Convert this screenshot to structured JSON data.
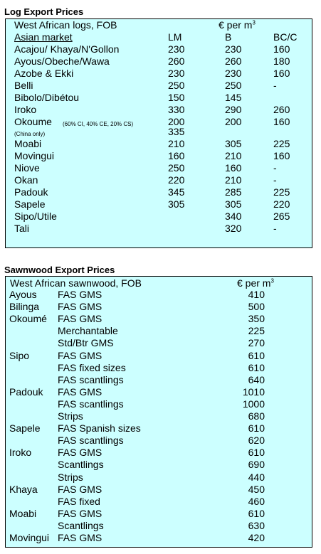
{
  "log": {
    "heading": "Log Export Prices",
    "subtitle": "West African logs, FOB",
    "unit": "€ per m",
    "unit_sup": "3",
    "market": "Asian market",
    "cols": [
      "LM",
      "B",
      "BC/C"
    ],
    "rows": [
      {
        "name": "Acajou/ Khaya/N'Gollon",
        "lm": "230",
        "b": "230",
        "bc": "160"
      },
      {
        "name": "Ayous/Obeche/Wawa",
        "lm": "260",
        "b": "260",
        "bc": "180"
      },
      {
        "name": "Azobe & Ekki",
        "lm": "230",
        "b": "230",
        "bc": "160"
      },
      {
        "name": "Belli",
        "lm": "250",
        "b": "250",
        "bc": "-"
      },
      {
        "name": "Bibolo/Dibétou",
        "lm": "150",
        "b": "145",
        "bc": ""
      },
      {
        "name": "Iroko",
        "lm": "330",
        "b": "290",
        "bc": "260"
      },
      {
        "name": "Okoume",
        "note": "(60% CI, 40% CE, 20% CS)",
        "lm": "200",
        "b": "200",
        "bc": "160"
      },
      {
        "name": "",
        "note": "(China only)",
        "lm": "335",
        "b": "",
        "bc": ""
      },
      {
        "name": "Moabi",
        "lm": "210",
        "b": "305",
        "bc": "225"
      },
      {
        "name": "Movingui",
        "lm": "160",
        "b": "210",
        "bc": "160"
      },
      {
        "name": "Niove",
        "lm": "250",
        "b": "160",
        "bc": "-"
      },
      {
        "name": "Okan",
        "lm": "220",
        "b": "210",
        "bc": "-"
      },
      {
        "name": "Padouk",
        "lm": "345",
        "b": "285",
        "bc": "225"
      },
      {
        "name": "Sapele",
        "lm": "305",
        "b": "305",
        "bc": "220"
      },
      {
        "name": "Sipo/Utile",
        "lm": "",
        "b": "340",
        "bc": "265"
      },
      {
        "name": "Tali",
        "lm": "",
        "b": "320",
        "bc": "-"
      }
    ]
  },
  "sawn": {
    "heading": "Sawnwood Export Prices",
    "subtitle": "West African sawnwood, FOB",
    "unit": "€ per m",
    "unit_sup": "3",
    "rows": [
      {
        "species": "Ayous",
        "grade": "FAS GMS",
        "price": "410"
      },
      {
        "species": "Bilinga",
        "grade": "FAS GMS",
        "price": "500"
      },
      {
        "species": "Okoumé",
        "grade": "FAS GMS",
        "price": "350"
      },
      {
        "species": "",
        "grade": "Merchantable",
        "price": "225"
      },
      {
        "species": "",
        "grade": "Std/Btr GMS",
        "price": "270"
      },
      {
        "species": "Sipo",
        "grade": "FAS GMS",
        "price": "610"
      },
      {
        "species": "",
        "grade": "FAS fixed sizes",
        "price": "610"
      },
      {
        "species": "",
        "grade": "FAS scantlings",
        "price": "640"
      },
      {
        "species": "Padouk",
        "grade": "FAS GMS",
        "price": "1010"
      },
      {
        "species": "",
        "grade": "FAS scantlings",
        "price": "1000"
      },
      {
        "species": "",
        "grade": "Strips",
        "price": "680"
      },
      {
        "species": "Sapele",
        "grade": "FAS Spanish sizes",
        "price": "610"
      },
      {
        "species": "",
        "grade": "FAS scantlings",
        "price": "620"
      },
      {
        "species": "Iroko",
        "grade": "FAS GMS",
        "price": "610"
      },
      {
        "species": "",
        "grade": "Scantlings",
        "price": "690"
      },
      {
        "species": "",
        "grade": "Strips",
        "price": "440"
      },
      {
        "species": "Khaya",
        "grade": "FAS GMS",
        "price": "450"
      },
      {
        "species": "",
        "grade": "FAS fixed",
        "price": "460"
      },
      {
        "species": "Moabi",
        "grade": "FAS GMS",
        "price": "610"
      },
      {
        "species": "",
        "grade": "Scantlings",
        "price": "630"
      },
      {
        "species": "Movingui",
        "grade": "FAS GMS",
        "price": "420"
      }
    ]
  }
}
